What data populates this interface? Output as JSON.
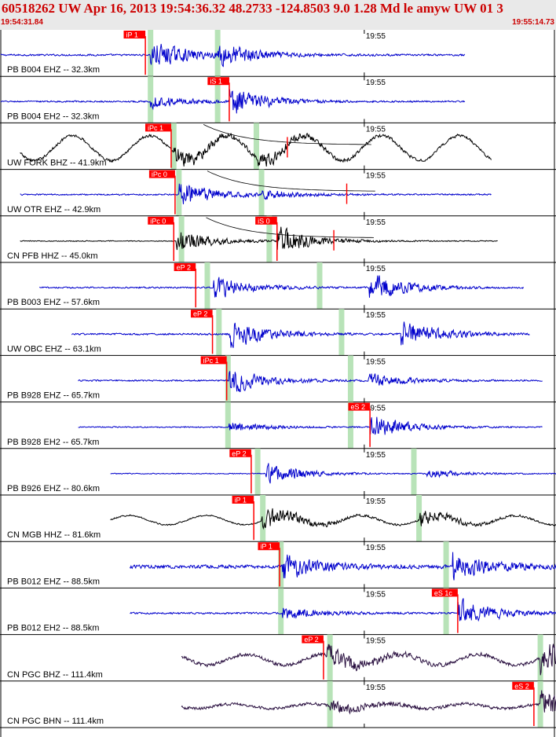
{
  "header": {
    "title": "60518262 UW Apr 16, 2013 19:54:36.32   48.2733 -124.8503  9.0 1.28 Md le amyw UW 01    3",
    "start_time": "19:54:31.84",
    "end_time": "19:55:14.73"
  },
  "colors": {
    "trace_blue": "#0000cc",
    "trace_black": "#000000",
    "trace_purple": "#2a1040",
    "pick_red": "#ff0000",
    "theory_green": "#b8e3b8",
    "header_bg": "#e9e9e9"
  },
  "chart_data": {
    "type": "seismogram",
    "time_start": "19:54:31.84",
    "time_end": "19:55:14.73",
    "minute_marker": "19:55",
    "traces": [
      {
        "label": "PB B004 EHZ -- 32.3km",
        "color": "blue",
        "start": 0,
        "end": 36,
        "pick": {
          "label": "iP 1",
          "t": 11.2
        },
        "green": [
          11.6,
          16.8
        ],
        "bursts": [
          [
            11.6,
            1.0
          ],
          [
            16.8,
            0.9
          ]
        ],
        "noise": 0.06
      },
      {
        "label": "PB B004 EH2 -- 32.3km",
        "color": "blue",
        "start": 0,
        "end": 36,
        "pick": {
          "label": "iS 1",
          "t": 17.7
        },
        "green": [
          11.6,
          16.8
        ],
        "bursts": [
          [
            11.6,
            0.45
          ],
          [
            17.7,
            1.0
          ]
        ],
        "noise": 0.05
      },
      {
        "label": "UW FORK BHZ -- 41.9km",
        "color": "black",
        "start": 1.5,
        "end": 38,
        "pick": {
          "label": "iPc 1",
          "t": 13.2
        },
        "green": [
          13.4,
          19.8
        ],
        "bursts": [
          [
            13.4,
            0.6
          ],
          [
            19.8,
            0.5
          ]
        ],
        "noise": 0.1,
        "swell": 0.8,
        "decay": true,
        "red_ticks": [
          22.2
        ]
      },
      {
        "label": "UW OTR EHZ -- 42.9km",
        "color": "blue",
        "start": 1.5,
        "end": 38,
        "pick": {
          "label": "iPc 0",
          "t": 13.5
        },
        "green": [
          13.8,
          20.2
        ],
        "bursts": [
          [
            13.8,
            0.9
          ],
          [
            20.2,
            0.3
          ]
        ],
        "noise": 0.05,
        "decay": true,
        "red_ticks": [
          26.8
        ]
      },
      {
        "label": "CN PFB HHZ -- 45.0km",
        "color": "black",
        "start": 1.5,
        "end": 38.5,
        "pick": {
          "label": "iPc 0",
          "t": 13.4
        },
        "pick2": {
          "label": "iS 0",
          "t": 21.4
        },
        "green": [
          14.0,
          20.8
        ],
        "bursts": [
          [
            13.6,
            0.8
          ],
          [
            21.4,
            1.0
          ]
        ],
        "noise": 0.03,
        "decay": true,
        "red_ticks": [
          25.8
        ]
      },
      {
        "label": "PB B003 EHZ -- 57.6km",
        "color": "blue",
        "start": 3,
        "end": 40.5,
        "pick": {
          "label": "eP 2",
          "t": 15.1
        },
        "green": [
          16.0,
          24.7
        ],
        "bursts": [
          [
            16.5,
            0.8
          ],
          [
            28.5,
            1.0
          ]
        ],
        "noise": 0.05
      },
      {
        "label": "UW OBC EHZ -- 63.1km",
        "color": "blue",
        "start": 5.5,
        "end": 41,
        "pick": {
          "label": "eP 2",
          "t": 16.4
        },
        "green": [
          16.9,
          26.4
        ],
        "bursts": [
          [
            17.7,
            1.0
          ],
          [
            31.0,
            1.0
          ]
        ],
        "noise": 0.06
      },
      {
        "label": "PB B928 EHZ -- 65.7km",
        "color": "blue",
        "start": 6,
        "end": 42,
        "pick": {
          "label": "iPc 1",
          "t": 17.5
        },
        "green": [
          17.6,
          27.1
        ],
        "bursts": [
          [
            17.7,
            0.9
          ],
          [
            28.5,
            0.5
          ]
        ],
        "noise": 0.05
      },
      {
        "label": "PB B928 EH2 -- 65.7km",
        "color": "blue",
        "start": 6,
        "end": 42,
        "pick": {
          "label": "eS 2",
          "t": 28.6
        },
        "green": [
          17.6,
          27.1
        ],
        "bursts": [
          [
            17.7,
            0.35
          ],
          [
            28.6,
            0.9
          ]
        ],
        "noise": 0.04
      },
      {
        "label": "PB B926 EHZ -- 80.6km",
        "color": "blue",
        "start": 8.5,
        "end": 44.5,
        "pick": {
          "label": "eP 2",
          "t": 19.4
        },
        "green": [
          19.9,
          32.0
        ],
        "bursts": [
          [
            20.5,
            0.8
          ],
          [
            33.0,
            0.3
          ]
        ],
        "noise": 0.03
      },
      {
        "label": "CN MGB HHZ -- 81.6km",
        "color": "black",
        "start": 8.5,
        "end": 44.5,
        "pick": {
          "label": "iP 1",
          "t": 19.6
        },
        "green": [
          20.3,
          32.4
        ],
        "bursts": [
          [
            20.2,
            0.8
          ],
          [
            32.4,
            0.5
          ]
        ],
        "noise": 0.05,
        "swell": 0.3
      },
      {
        "label": "PB B012 EHZ -- 88.5km",
        "color": "blue",
        "start": 10,
        "end": 46,
        "pick": {
          "label": "iP 1",
          "t": 21.6
        },
        "green": [
          21.7,
          34.5
        ],
        "bursts": [
          [
            21.8,
            0.9
          ],
          [
            35.0,
            1.0
          ]
        ],
        "noise": 0.12
      },
      {
        "label": "PB B012 EH2 -- 88.5km",
        "color": "blue",
        "start": 10,
        "end": 46,
        "pick": {
          "label": "eS 1c",
          "t": 35.4
        },
        "green": [
          21.7,
          34.5
        ],
        "bursts": [
          [
            21.8,
            0.45
          ],
          [
            35.4,
            1.0
          ]
        ],
        "noise": 0.06
      },
      {
        "label": "CN PGC BHZ -- 111.4km",
        "color": "purple",
        "start": 14,
        "end": 50,
        "pick": {
          "label": "eP 2",
          "t": 25.0
        },
        "green": [
          25.5,
          41.8
        ],
        "bursts": [
          [
            25.2,
            0.8
          ],
          [
            41.8,
            1.0
          ]
        ],
        "noise": 0.12,
        "swell": 0.35
      },
      {
        "label": "CN PGC BHN -- 111.4km",
        "color": "purple",
        "start": 14,
        "end": 50,
        "pick": {
          "label": "eS 2",
          "t": 41.3
        },
        "green": [
          25.5,
          41.8
        ],
        "bursts": [
          [
            25.5,
            0.4
          ],
          [
            41.8,
            1.0
          ]
        ],
        "noise": 0.1,
        "swell": 0.15
      }
    ]
  }
}
